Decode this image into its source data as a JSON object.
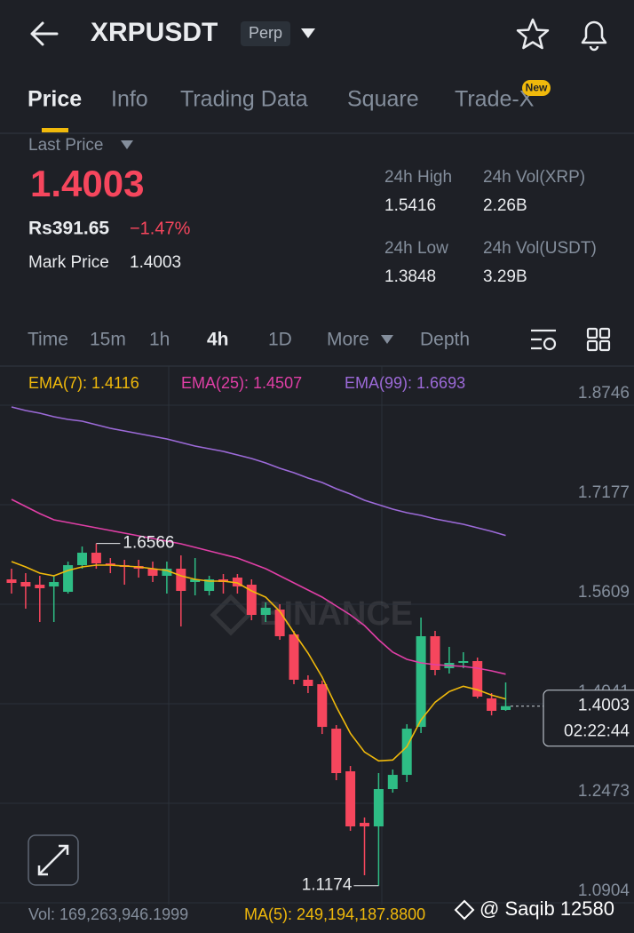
{
  "header": {
    "symbol": "XRPUSDT",
    "badge": "Perp"
  },
  "tabs": [
    "Price",
    "Info",
    "Trading Data",
    "Square",
    "Trade-X"
  ],
  "new_badge": "New",
  "ticker": {
    "last_price_label": "Last Price",
    "last_price": "1.4003",
    "local_price": "Rs391.65",
    "change": "−1.47%",
    "mark_price_label": "Mark Price",
    "mark_price": "1.4003",
    "stats": [
      {
        "label": "24h High",
        "value": "1.5416"
      },
      {
        "label": "24h Vol(XRP)",
        "value": "2.26B"
      },
      {
        "label": "24h Low",
        "value": "1.3848"
      },
      {
        "label": "24h Vol(USDT)",
        "value": "3.29B"
      }
    ]
  },
  "intervals": [
    "Time",
    "15m",
    "1h",
    "4h",
    "1D",
    "More",
    "Depth"
  ],
  "chart_data": {
    "type": "candlestick",
    "open": [
      1.6001,
      1.5959,
      1.5917,
      1.5889,
      1.5805,
      1.6225,
      1.6421,
      1.6253,
      1.6225,
      1.6211,
      1.6169,
      1.6057,
      1.6169,
      1.5959,
      1.5819,
      1.6001,
      1.6029,
      1.5917,
      1.5441,
      1.5525,
      1.5133,
      1.4419,
      1.4349,
      1.3648,
      1.2976,
      1.2164,
      1.2108,
      1.2696,
      1.292,
      1.3676,
      1.5105,
      1.4601,
      1.4685,
      1.4713,
      1.4125,
      1.3943
    ],
    "high": [
      1.6169,
      1.6099,
      1.6057,
      1.6057,
      1.6281,
      1.6519,
      1.6566,
      1.6337,
      1.6309,
      1.6309,
      1.6281,
      1.6281,
      1.6379,
      1.6337,
      1.6057,
      1.6085,
      1.6085,
      1.6001,
      1.5637,
      1.5609,
      1.5189,
      1.4489,
      1.4405,
      1.3704,
      1.306,
      1.2248,
      1.2948,
      1.3004,
      1.3718,
      1.5399,
      1.5189,
      1.4937,
      1.4853,
      1.4769,
      1.4209,
      1.4377
    ],
    "low": [
      1.5777,
      1.5539,
      1.5329,
      1.5329,
      1.5777,
      1.6169,
      1.6169,
      1.6099,
      1.5917,
      1.6029,
      1.5959,
      1.5777,
      1.5259,
      1.5749,
      1.5749,
      1.5777,
      1.5777,
      1.5357,
      1.5329,
      1.5049,
      1.4349,
      1.4209,
      1.3564,
      1.2836,
      1.2038,
      1.1338,
      1.1174,
      1.264,
      1.2808,
      1.3578,
      1.4489,
      1.4517,
      1.4601,
      1.4125,
      1.3858,
      1.3929
    ],
    "close": [
      1.5945,
      1.5889,
      1.5861,
      1.5959,
      1.6225,
      1.6421,
      1.6253,
      1.6225,
      1.6197,
      1.6169,
      1.6057,
      1.6169,
      1.5819,
      1.6001,
      1.6001,
      1.5959,
      1.5889,
      1.5441,
      1.5553,
      1.5105,
      1.4419,
      1.4321,
      1.3676,
      1.2948,
      1.2108,
      1.2108,
      1.2696,
      1.292,
      1.3648,
      1.5105,
      1.4573,
      1.4685,
      1.4713,
      1.4153,
      1.3929,
      1.4003
    ],
    "up_color": "#2ebd85",
    "down_color": "#f6465d",
    "series": [
      {
        "name": "EMA(7):",
        "color": "#f0b90b",
        "values": [
          1.6281,
          1.6197,
          1.6099,
          1.6057,
          1.6141,
          1.6197,
          1.6225,
          1.6225,
          1.6211,
          1.6197,
          1.6169,
          1.6141,
          1.6057,
          1.6001,
          1.5973,
          1.5973,
          1.5945,
          1.5819,
          1.5721,
          1.5497,
          1.5161,
          1.4839,
          1.4461,
          1.3994,
          1.3574,
          1.328,
          1.314,
          1.3154,
          1.3364,
          1.3784,
          1.4064,
          1.4232,
          1.4316,
          1.426,
          1.4176,
          1.4116
        ]
      },
      {
        "name": "EMA(25):",
        "color": "#e03fa6",
        "values": [
          1.7262,
          1.715,
          1.7038,
          1.694,
          1.6898,
          1.6856,
          1.6814,
          1.6772,
          1.6729,
          1.6687,
          1.6645,
          1.6603,
          1.6561,
          1.6505,
          1.6449,
          1.6393,
          1.6337,
          1.6253,
          1.6169,
          1.6057,
          1.5945,
          1.5833,
          1.5721,
          1.5581,
          1.5441,
          1.5273,
          1.5049,
          1.4853,
          1.4741,
          1.4685,
          1.4657,
          1.4643,
          1.4629,
          1.4601,
          1.4559,
          1.4507
        ]
      },
      {
        "name": "EMA(99):",
        "color": "#9c6ad8",
        "values": [
          1.8718,
          1.8662,
          1.862,
          1.8564,
          1.8522,
          1.8494,
          1.8438,
          1.8382,
          1.834,
          1.8298,
          1.8256,
          1.8214,
          1.8158,
          1.8102,
          1.806,
          1.8018,
          1.7962,
          1.7906,
          1.7836,
          1.7752,
          1.7682,
          1.7598,
          1.7528,
          1.743,
          1.7346,
          1.7248,
          1.7178,
          1.7108,
          1.7052,
          1.701,
          1.6954,
          1.6912,
          1.687,
          1.6814,
          1.6758,
          1.6693
        ]
      }
    ],
    "ylim": [
      1.0876,
      1.9362
    ],
    "yticks": [
      1.8746,
      1.7177,
      1.5609,
      1.4041,
      1.2473,
      1.0904
    ],
    "grid": true,
    "watermark": "BINANCE",
    "countdown": "02:22:44"
  },
  "volume": {
    "vol": "Vol: 169,263,946.1999",
    "ma": "MA(5): 249,194,187.8800"
  },
  "watermark": "@ Saqib 12580"
}
